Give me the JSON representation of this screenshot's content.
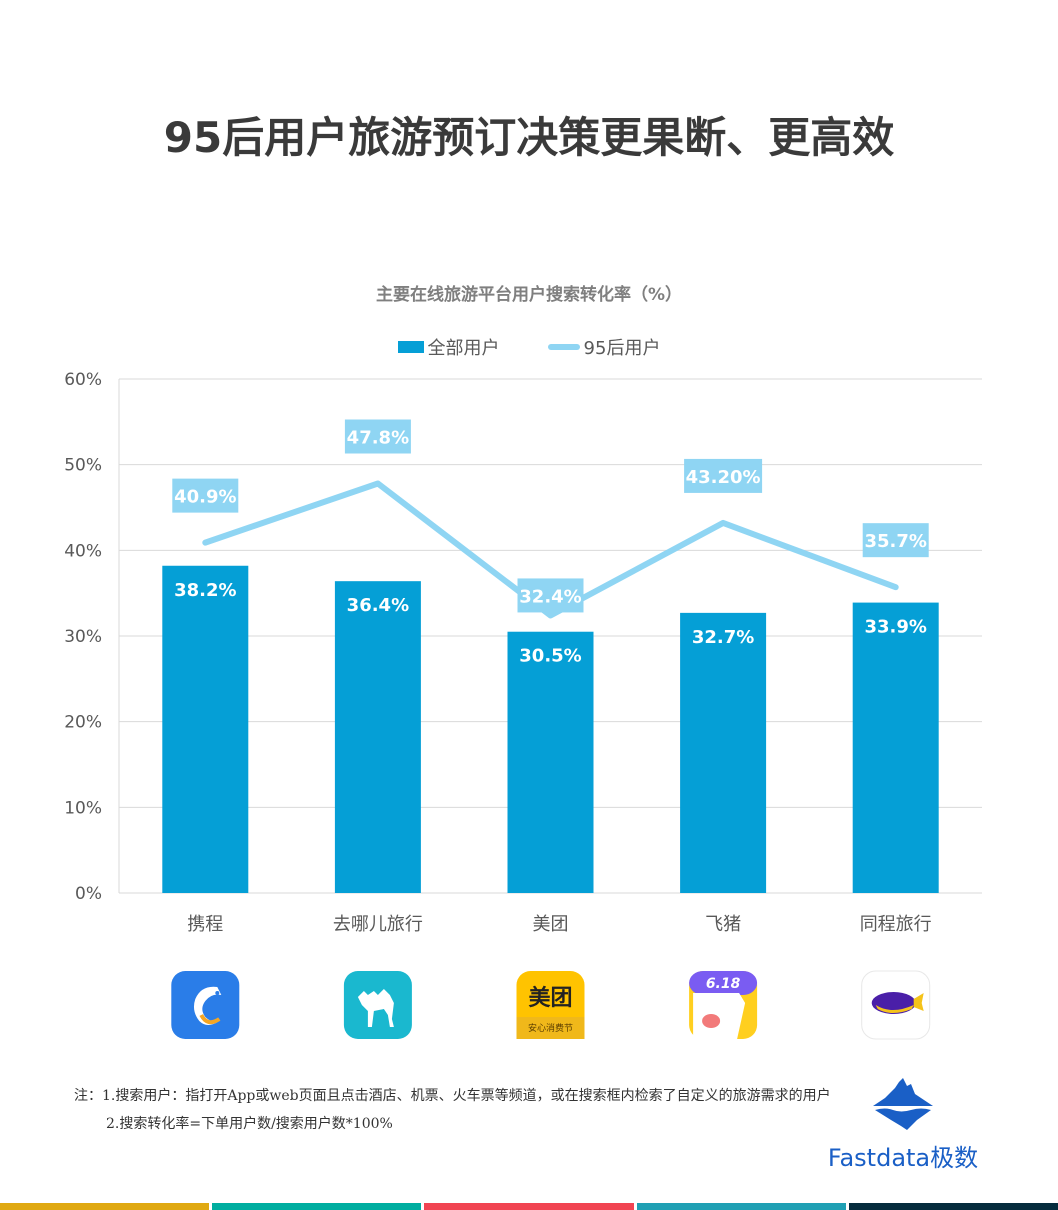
{
  "page": {
    "title": "95后用户旅游预订决策更果断、更高效"
  },
  "chart_data": {
    "type": "bar+line",
    "title": "主要在线旅游平台用户搜索转化率（%）",
    "categories": [
      "携程",
      "去哪儿旅行",
      "美团",
      "飞猪",
      "同程旅行"
    ],
    "series": [
      {
        "name": "全部用户",
        "type": "bar",
        "color": "#059fd6",
        "values": [
          38.2,
          36.4,
          30.5,
          32.7,
          33.9
        ],
        "labels": [
          "38.2%",
          "36.4%",
          "30.5%",
          "32.7%",
          "33.9%"
        ]
      },
      {
        "name": "95后用户",
        "type": "line",
        "color": "#8fd5f3",
        "values": [
          40.9,
          47.8,
          32.4,
          43.2,
          35.7
        ],
        "labels": [
          "40.9%",
          "47.8%",
          "32.4%",
          "43.20%",
          "35.7%"
        ]
      }
    ],
    "ylim": [
      0,
      60
    ],
    "yticks": [
      "0%",
      "10%",
      "20%",
      "30%",
      "40%",
      "50%",
      "60%"
    ],
    "xlabel": "",
    "ylabel": "",
    "grid": true,
    "legend_position": "top"
  },
  "legend": {
    "bar_label": "全部用户",
    "line_label": "95后用户"
  },
  "app_icons": [
    {
      "name": "ctrip-icon",
      "label": "携程"
    },
    {
      "name": "qunar-icon",
      "label": "去哪儿旅行"
    },
    {
      "name": "meituan-icon",
      "label": "美团",
      "text_main": "美团",
      "text_sub": "安心消费节"
    },
    {
      "name": "fliggy-icon",
      "label": "飞猪",
      "badge": "6.18"
    },
    {
      "name": "tongcheng-icon",
      "label": "同程旅行"
    }
  ],
  "notes": {
    "line1": "注：1.搜索用户：指打开App或web页面且点击酒店、机票、火车票等频道，或在搜索框内检索了自定义的旅游需求的用户",
    "line2": "2.搜索转化率=下单用户数/搜索用户数*100%"
  },
  "brand": {
    "name": "Fastdata极数",
    "color": "#1a5fc6"
  },
  "footer_colors": [
    "#e0a912",
    "#00aea0",
    "#f14452",
    "#1fa0b4",
    "#052c3d"
  ]
}
